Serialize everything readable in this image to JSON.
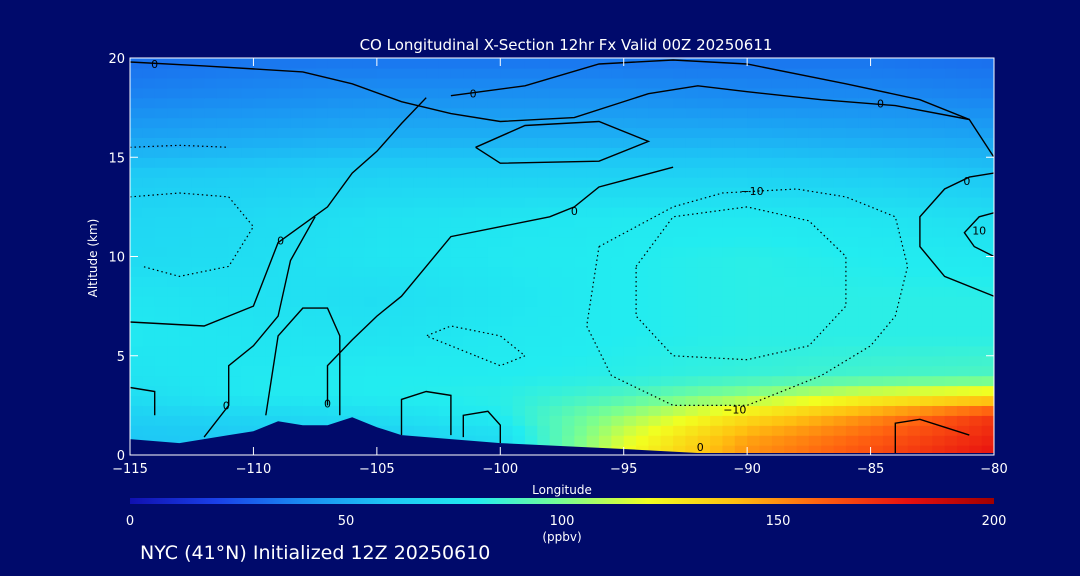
{
  "chart_data": {
    "type": "heatmap",
    "title": "CO Longitudinal X-Section 12hr  Fx Valid 00Z 20250611",
    "xlabel": "Longitude",
    "ylabel": "Altitude (km)",
    "xlim": [
      -115,
      -80
    ],
    "ylim": [
      0,
      20
    ],
    "x_ticks": [
      "−115",
      "−110",
      "−105",
      "−100",
      "−95",
      "−90",
      "−85",
      "−80"
    ],
    "y_ticks": [
      "0",
      "5",
      "10",
      "15",
      "20"
    ],
    "x_tick_values": [
      -115,
      -110,
      -105,
      -100,
      -95,
      -90,
      -85,
      -80
    ],
    "y_tick_values": [
      0,
      5,
      10,
      15,
      20
    ],
    "colorbar": {
      "range": [
        0,
        200
      ],
      "tick_labels": [
        "0",
        "50",
        "100",
        "150",
        "200"
      ],
      "tick_values": [
        0,
        50,
        100,
        150,
        200
      ],
      "unit": "(ppbv)",
      "colormap": [
        "#1010b0",
        "#1a40e8",
        "#1a8cf2",
        "#1ec8f5",
        "#22ecf0",
        "#7aff90",
        "#f2ff20",
        "#ffc010",
        "#ff6010",
        "#e81010",
        "#a00000"
      ]
    },
    "altitude_levels_km": [
      0,
      1,
      2,
      3,
      4,
      6,
      8,
      10,
      12,
      14,
      16,
      18,
      20
    ],
    "longitude_columns": [
      -115,
      -110,
      -105,
      -100,
      -95,
      -90,
      -85,
      -80
    ],
    "co_ppbv_rows": [
      [
        60,
        62,
        64,
        70,
        120,
        150,
        165,
        180
      ],
      [
        60,
        62,
        64,
        72,
        115,
        145,
        160,
        175
      ],
      [
        65,
        68,
        72,
        80,
        105,
        130,
        150,
        170
      ],
      [
        72,
        78,
        80,
        82,
        90,
        105,
        120,
        130
      ],
      [
        75,
        78,
        80,
        80,
        82,
        85,
        88,
        90
      ],
      [
        78,
        76,
        75,
        78,
        80,
        82,
        82,
        82
      ],
      [
        76,
        74,
        72,
        76,
        80,
        82,
        82,
        82
      ],
      [
        70,
        72,
        76,
        78,
        80,
        82,
        80,
        78
      ],
      [
        68,
        70,
        74,
        76,
        78,
        78,
        76,
        72
      ],
      [
        62,
        64,
        66,
        66,
        66,
        66,
        64,
        60
      ],
      [
        48,
        50,
        52,
        52,
        52,
        52,
        50,
        48
      ],
      [
        38,
        40,
        42,
        42,
        42,
        40,
        40,
        38
      ],
      [
        32,
        34,
        34,
        34,
        34,
        34,
        34,
        32
      ]
    ],
    "contour_labels": [
      "0",
      "0",
      "0",
      "0",
      "0",
      "0",
      "0",
      "−10",
      "−10",
      "0",
      "10",
      "0"
    ],
    "terrain_km": [
      [
        -115,
        0.8
      ],
      [
        -113,
        0.6
      ],
      [
        -111,
        1.0
      ],
      [
        -110,
        1.2
      ],
      [
        -109,
        1.7
      ],
      [
        -108,
        1.5
      ],
      [
        -107,
        1.5
      ],
      [
        -106,
        1.9
      ],
      [
        -105,
        1.4
      ],
      [
        -104,
        1.0
      ],
      [
        -100,
        0.6
      ],
      [
        -95,
        0.3
      ],
      [
        -92,
        0.1
      ],
      [
        -80,
        0.1
      ]
    ]
  },
  "footer": "NYC (41°N) Initialized 12Z 20250610"
}
